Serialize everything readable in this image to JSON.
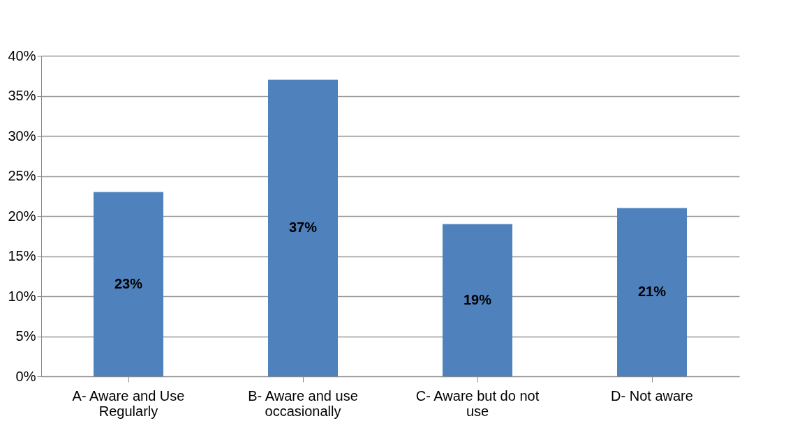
{
  "chart_data": {
    "type": "bar",
    "categories": [
      "A- Aware and Use Regularly",
      "B- Aware and use occasionally",
      "C- Aware but do not use",
      "D- Not aware"
    ],
    "values": [
      23,
      37,
      19,
      21
    ],
    "value_labels": [
      "23%",
      "37%",
      "19%",
      "21%"
    ],
    "color": "#4f81bd",
    "ylim": [
      0,
      40
    ],
    "yticks": [
      {
        "value": 0,
        "label": "0%"
      },
      {
        "value": 5,
        "label": "5%"
      },
      {
        "value": 10,
        "label": "10%"
      },
      {
        "value": 15,
        "label": "15%"
      },
      {
        "value": 20,
        "label": "20%"
      },
      {
        "value": 25,
        "label": "25%"
      },
      {
        "value": 30,
        "label": "30%"
      },
      {
        "value": 35,
        "label": "35%"
      },
      {
        "value": 40,
        "label": "40%"
      }
    ],
    "grid": "y"
  }
}
